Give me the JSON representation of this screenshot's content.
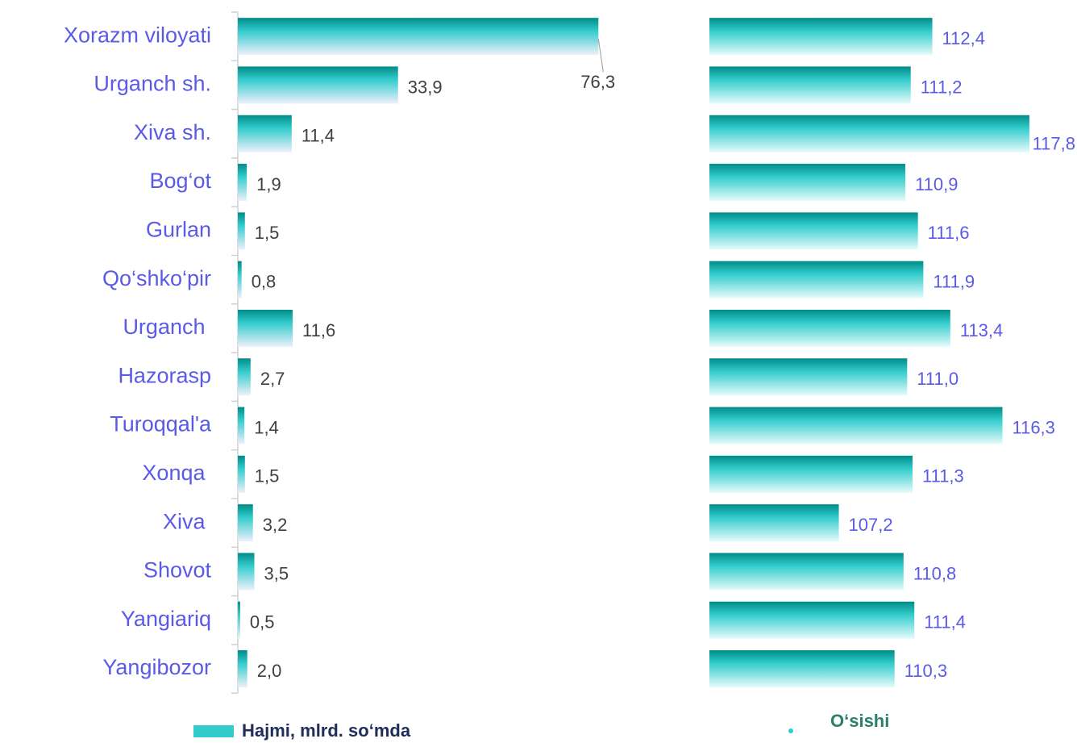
{
  "chart_data": [
    {
      "type": "bar",
      "categories": [
        "Xorazm viloyati",
        "Urganch sh.",
        "Xiva sh.",
        "Bog‘ot",
        "Gurlan",
        "Qo‘shko‘pir",
        "Urganch ",
        "Hazorasp",
        "Turoqqal'a",
        "Xonqa ",
        "Xiva ",
        "Shovot",
        "Yangiariq",
        "Yangibozor"
      ],
      "series": [
        {
          "name": "Hajmi, mlrd. so‘mda",
          "color": "#33cccc",
          "values": [
            76.3,
            33.9,
            11.4,
            1.9,
            1.5,
            0.8,
            11.6,
            2.7,
            1.4,
            1.5,
            3.2,
            3.5,
            0.5,
            2.0
          ],
          "value_labels": [
            "76,3",
            "33,9",
            "11,4",
            "1,9",
            "1,5",
            "0,8",
            "11,6",
            "2,7",
            "1,4",
            "1,5",
            "3,2",
            "3,5",
            "0,5",
            "2,0"
          ]
        }
      ],
      "xlim": [
        0,
        80
      ]
    },
    {
      "type": "bar",
      "series": [
        {
          "name": "O‘sishi",
          "color": "#33cccc",
          "values": [
            112.4,
            111.2,
            117.8,
            110.9,
            111.6,
            111.9,
            113.4,
            111.0,
            116.3,
            111.3,
            107.2,
            110.8,
            111.4,
            110.3
          ],
          "value_labels": [
            "112,4",
            "111,2",
            "117,8",
            "110,9",
            "111,6",
            "111,9",
            "113,4",
            "111,0",
            "116,3",
            "111,3",
            "107,2",
            "110,8",
            "111,4",
            "110,3"
          ]
        }
      ],
      "xlim": [
        100,
        120
      ]
    }
  ]
}
